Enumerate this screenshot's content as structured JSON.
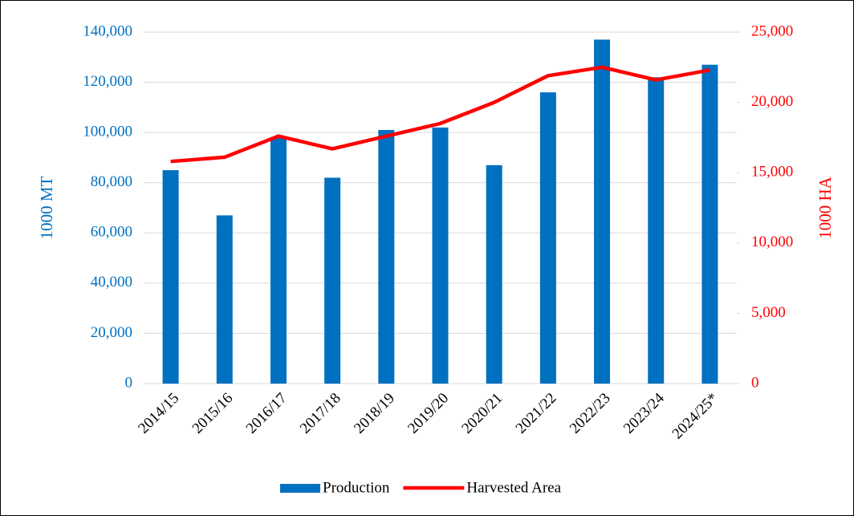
{
  "chart_data": {
    "type": "bar-line",
    "categories": [
      "2014/15",
      "2015/16",
      "2016/17",
      "2017/18",
      "2018/19",
      "2019/20",
      "2020/21",
      "2021/22",
      "2022/23",
      "2023/24",
      "2024/25*"
    ],
    "series": [
      {
        "name": "Production",
        "type": "bar",
        "color": "#0070c0",
        "axis": "y",
        "values": [
          85000,
          67000,
          98000,
          82000,
          101000,
          102000,
          87000,
          116000,
          137000,
          122000,
          127000
        ]
      },
      {
        "name": "Harvested Area",
        "type": "line",
        "color": "#ff0000",
        "axis": "y2",
        "values": [
          15800,
          16100,
          17600,
          16700,
          17600,
          18500,
          20000,
          21900,
          22500,
          21600,
          22300
        ]
      }
    ],
    "y_label": "1000 MT",
    "y2_label": "1000 HA",
    "ylim": [
      0,
      140000
    ],
    "yticks": [
      0,
      {
        "value": 20000,
        "label": "20,000"
      },
      {
        "value": 40000,
        "label": "40,000"
      },
      {
        "value": 60000,
        "label": "60,000"
      },
      {
        "value": 80000,
        "label": "80,000"
      },
      {
        "value": 100000,
        "label": "100,000"
      },
      {
        "value": 120000,
        "label": "120,000"
      },
      {
        "value": 140000,
        "label": "140,000"
      }
    ],
    "y2lim": [
      0,
      25000
    ],
    "y2ticks": [
      0,
      {
        "value": 5000,
        "label": "5,000"
      },
      {
        "value": 10000,
        "label": "10,000"
      },
      {
        "value": 15000,
        "label": "15,000"
      },
      {
        "value": 20000,
        "label": "20,000"
      },
      {
        "value": 25000,
        "label": "25,000"
      }
    ],
    "grid": true,
    "legend": "bottom"
  }
}
